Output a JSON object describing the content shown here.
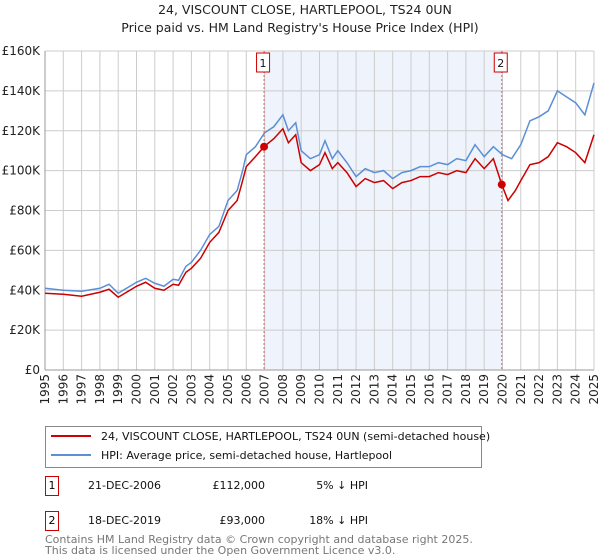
{
  "chart_data": {
    "type": "line",
    "title": "24, VISCOUNT CLOSE, HARTLEPOOL, TS24 0UN",
    "subtitle": "Price paid vs. HM Land Registry's House Price Index (HPI)",
    "xlim": [
      1995,
      2025
    ],
    "ylim": [
      0,
      160000
    ],
    "yticks": [
      0,
      20000,
      40000,
      60000,
      80000,
      100000,
      120000,
      140000,
      160000
    ],
    "ytick_labels": [
      "£0",
      "£20K",
      "£40K",
      "£60K",
      "£80K",
      "£100K",
      "£120K",
      "£140K",
      "£160K"
    ],
    "xtick_labels": [
      "1995",
      "1996",
      "1997",
      "1998",
      "1999",
      "2000",
      "2001",
      "2002",
      "2003",
      "2004",
      "2005",
      "2006",
      "2007",
      "2008",
      "2009",
      "2010",
      "2011",
      "2012",
      "2013",
      "2014",
      "2015",
      "2016",
      "2017",
      "2018",
      "2019",
      "2020",
      "2021",
      "2022",
      "2023",
      "2024",
      "2025"
    ],
    "grid": true,
    "shaded_range": [
      2006.97,
      2019.96
    ],
    "series": [
      {
        "name": "24, VISCOUNT CLOSE, HARTLEPOOL, TS24 0UN (semi-detached house)",
        "color": "#cc0000",
        "x": [
          1995,
          1996,
          1997,
          1998,
          1998.5,
          1999,
          2000,
          2000.5,
          2001,
          2001.5,
          2002,
          2002.3,
          2002.7,
          2003,
          2003.5,
          2004,
          2004.5,
          2005,
          2005.5,
          2005.8,
          2006,
          2006.5,
          2006.97,
          2007.5,
          2008,
          2008.3,
          2008.7,
          2009,
          2009.5,
          2010,
          2010.3,
          2010.7,
          2011,
          2011.5,
          2012,
          2012.5,
          2013,
          2013.5,
          2014,
          2014.5,
          2015,
          2015.5,
          2016,
          2016.5,
          2017,
          2017.5,
          2018,
          2018.5,
          2019,
          2019.5,
          2019.96,
          2020.3,
          2020.7,
          2021,
          2021.5,
          2022,
          2022.5,
          2023,
          2023.5,
          2024,
          2024.5,
          2025
        ],
        "y": [
          38500,
          38000,
          37000,
          39000,
          40500,
          36500,
          42000,
          44000,
          41000,
          40000,
          43000,
          42500,
          49000,
          51000,
          56000,
          64000,
          69000,
          80000,
          85000,
          95000,
          102000,
          107000,
          112000,
          116000,
          121000,
          114000,
          118000,
          104000,
          100000,
          103000,
          109000,
          101000,
          104000,
          99000,
          92000,
          96000,
          94000,
          95000,
          91000,
          94000,
          95000,
          97000,
          97000,
          99000,
          98000,
          100000,
          99000,
          106000,
          101000,
          106000,
          93000,
          85000,
          90000,
          95000,
          103000,
          104000,
          107000,
          114000,
          112000,
          109000,
          104000,
          118000
        ]
      },
      {
        "name": "HPI: Average price, semi-detached house, Hartlepool",
        "color": "#5b8fd6",
        "x": [
          1995,
          1996,
          1997,
          1998,
          1998.5,
          1999,
          2000,
          2000.5,
          2001,
          2001.5,
          2002,
          2002.3,
          2002.7,
          2003,
          2003.5,
          2004,
          2004.5,
          2005,
          2005.5,
          2005.8,
          2006,
          2006.5,
          2007,
          2007.5,
          2008,
          2008.3,
          2008.7,
          2009,
          2009.5,
          2010,
          2010.3,
          2010.7,
          2011,
          2011.5,
          2012,
          2012.5,
          2013,
          2013.5,
          2014,
          2014.5,
          2015,
          2015.5,
          2016,
          2016.5,
          2017,
          2017.5,
          2018,
          2018.5,
          2019,
          2019.5,
          2020,
          2020.5,
          2021,
          2021.5,
          2022,
          2022.5,
          2023,
          2023.5,
          2024,
          2024.5,
          2025
        ],
        "y": [
          41000,
          40000,
          39500,
          41000,
          43000,
          38500,
          44000,
          46000,
          43500,
          42000,
          45500,
          45000,
          52000,
          54000,
          60000,
          68000,
          72000,
          85000,
          90000,
          100000,
          108000,
          112000,
          119000,
          122000,
          128000,
          120000,
          124000,
          110000,
          106000,
          108000,
          115000,
          106000,
          110000,
          104000,
          97000,
          101000,
          99000,
          100000,
          96000,
          99000,
          100000,
          102000,
          102000,
          104000,
          103000,
          106000,
          105000,
          113000,
          107000,
          112000,
          108000,
          106000,
          113000,
          125000,
          127000,
          130000,
          140000,
          137000,
          134000,
          128000,
          144000
        ]
      }
    ],
    "sales": [
      {
        "label": "1",
        "date": "21-DEC-2006",
        "x": 2006.97,
        "price": "£112,000",
        "value": 112000,
        "delta": "5% ↓ HPI"
      },
      {
        "label": "2",
        "date": "18-DEC-2019",
        "x": 2019.96,
        "price": "£93,000",
        "value": 93000,
        "delta": "18% ↓ HPI"
      }
    ]
  },
  "footer": {
    "line1": "Contains HM Land Registry data © Crown copyright and database right 2025.",
    "line2": "This data is licensed under the Open Government Licence v3.0."
  }
}
